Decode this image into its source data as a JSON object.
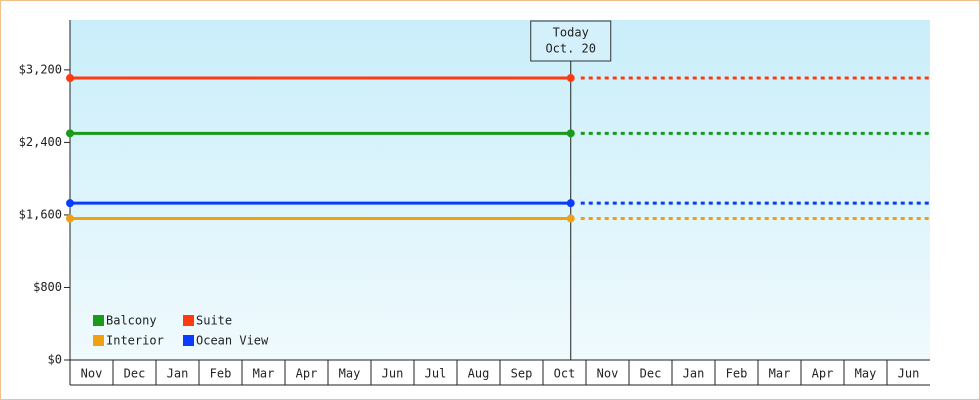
{
  "chart_data": {
    "type": "line",
    "categories": [
      "Nov",
      "Dec",
      "Jan",
      "Feb",
      "Mar",
      "Apr",
      "May",
      "Jun",
      "Jul",
      "Aug",
      "Sep",
      "Oct",
      "Nov",
      "Dec",
      "Jan",
      "Feb",
      "Mar",
      "Apr",
      "May",
      "Jun"
    ],
    "series": [
      {
        "name": "Balcony",
        "color": "#1a9a1a",
        "value": 2500
      },
      {
        "name": "Suite",
        "color": "#ff3a10",
        "value": 3110
      },
      {
        "name": "Interior",
        "color": "#f0a010",
        "value": 1560
      },
      {
        "name": "Ocean View",
        "color": "#0a3cff",
        "value": 1730
      }
    ],
    "ylim": [
      0,
      3750
    ],
    "yticks": [
      {
        "value": 0,
        "label": "$0"
      },
      {
        "value": 800,
        "label": "$800"
      },
      {
        "value": 1600,
        "label": "$1,600"
      },
      {
        "value": 2400,
        "label": "$2,400"
      },
      {
        "value": 3200,
        "label": "$3,200"
      }
    ],
    "annotation": {
      "line1": "Today",
      "line2": "Oct. 20"
    },
    "legend": "lower-left"
  }
}
